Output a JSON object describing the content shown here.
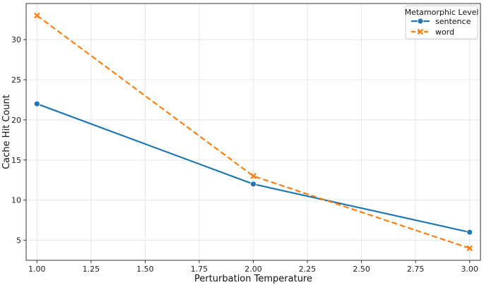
{
  "chart_data": {
    "type": "line",
    "xlabel": "Perturbation Temperature",
    "ylabel": "Cache Hit Count",
    "x_ticks": [
      "1.00",
      "1.25",
      "1.50",
      "1.75",
      "2.00",
      "2.25",
      "2.50",
      "2.75",
      "3.00"
    ],
    "y_ticks": [
      "5",
      "10",
      "15",
      "20",
      "25",
      "30"
    ],
    "xlim": [
      0.95,
      3.05
    ],
    "ylim": [
      2.5,
      34.5
    ],
    "grid": true,
    "legend": {
      "title": "Metamorphic Level",
      "placement": "top-right"
    },
    "series": [
      {
        "name": "sentence",
        "color": "#1f77b4",
        "marker": "circle",
        "linestyle": "solid",
        "x": [
          1.0,
          2.0,
          3.0
        ],
        "y": [
          22,
          12,
          6
        ]
      },
      {
        "name": "word",
        "color": "#ff7f0e",
        "marker": "x",
        "linestyle": "dashed",
        "x": [
          1.0,
          2.0,
          3.0
        ],
        "y": [
          33,
          13,
          4
        ]
      }
    ]
  }
}
